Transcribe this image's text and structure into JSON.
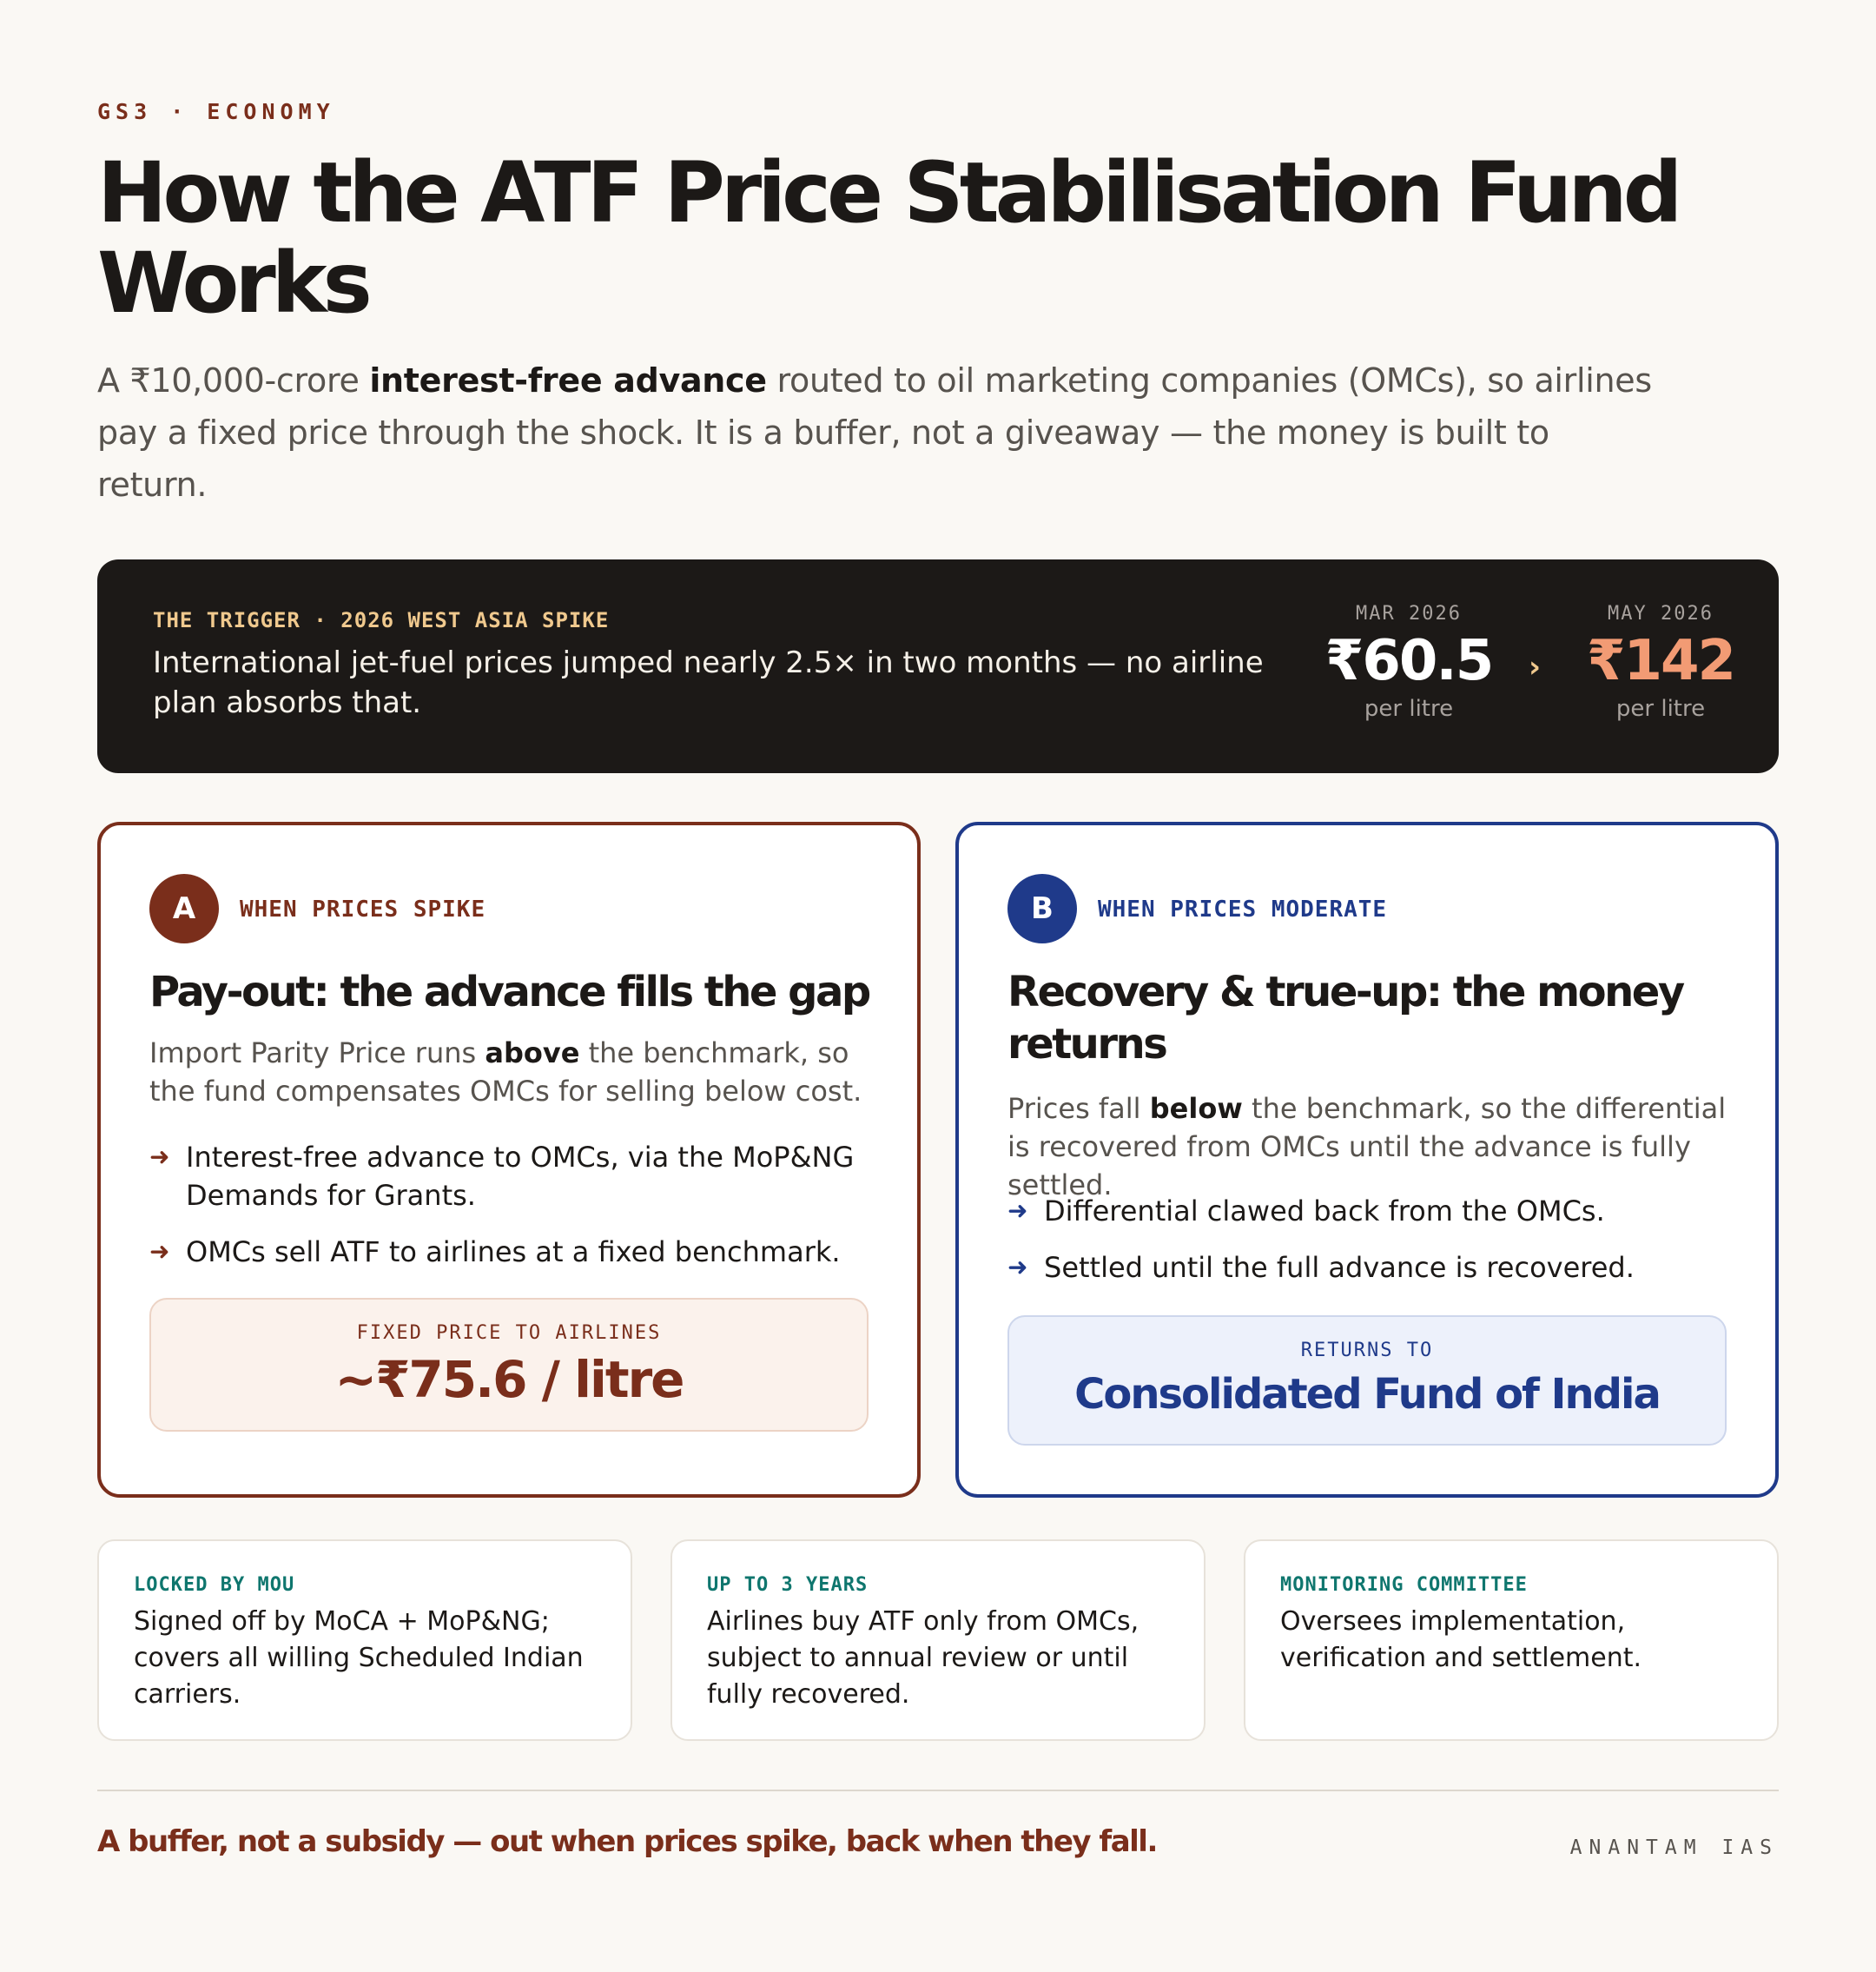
{
  "eyebrow": "GS3 · ECONOMY",
  "title": "How the ATF Price Stabilisation Fund Works",
  "lede": {
    "before": "A ₹10,000-crore ",
    "emphasis": "interest-free advance",
    "after": " routed to oil marketing companies (OMCs), so airlines pay a fixed price through the shock. It is a buffer, not a giveaway — the money is built to return."
  },
  "trigger": {
    "tag": "THE TRIGGER · 2026 WEST ASIA SPIKE",
    "text": "International jet-fuel prices jumped nearly 2.5× in two months — no airline plan absorbs that.",
    "from": {
      "month": "MAR 2026",
      "value": "₹60.5",
      "unit": "per litre"
    },
    "arrow": "›",
    "to": {
      "month": "MAY 2026",
      "value": "₹142",
      "unit": "per litre"
    }
  },
  "cards": [
    {
      "badge": "A",
      "tag": "WHEN PRICES SPIKE",
      "title": "Pay-out: the advance fills the gap",
      "desc_before": "Import Parity Price runs ",
      "desc_emphasis": "above",
      "desc_after": " the benchmark, so the fund compensates OMCs for selling below cost.",
      "bullets": [
        "Interest-free advance to OMCs, via the MoP&NG Demands for Grants.",
        "OMCs sell ATF to airlines at a fixed benchmark."
      ],
      "callout_label": "FIXED PRICE TO AIRLINES",
      "callout_value": "~₹75.6 / litre"
    },
    {
      "badge": "B",
      "tag": "WHEN PRICES MODERATE",
      "title": "Recovery & true-up: the money returns",
      "desc_before": "Prices fall ",
      "desc_emphasis": "below",
      "desc_after": " the benchmark, so the differential is recovered from OMCs until the advance is fully settled.",
      "bullets": [
        "Differential clawed back from the OMCs.",
        "Settled until the full advance is recovered."
      ],
      "callout_label": "RETURNS TO",
      "callout_value": "Consolidated Fund of India"
    }
  ],
  "facts": [
    {
      "label": "LOCKED BY MOU",
      "text": "Signed off by MoCA + MoP&NG; covers all willing Scheduled Indian carriers."
    },
    {
      "label": "UP TO 3 YEARS",
      "text": "Airlines buy ATF only from OMCs, subject to annual review or until fully recovered."
    },
    {
      "label": "MONITORING COMMITTEE",
      "text": "Oversees implementation, verification and settlement."
    }
  ],
  "bullet_arrow": "➜",
  "tagline": "A buffer, not a subsidy — out when prices spike, back when they fall.",
  "brand": "ANANTAM IAS",
  "colors": {
    "maroon": "#7a2e1b",
    "navy": "#1f3a8a",
    "teal": "#0f766e",
    "peach": "#f29b74",
    "dark": "#1c1917"
  }
}
